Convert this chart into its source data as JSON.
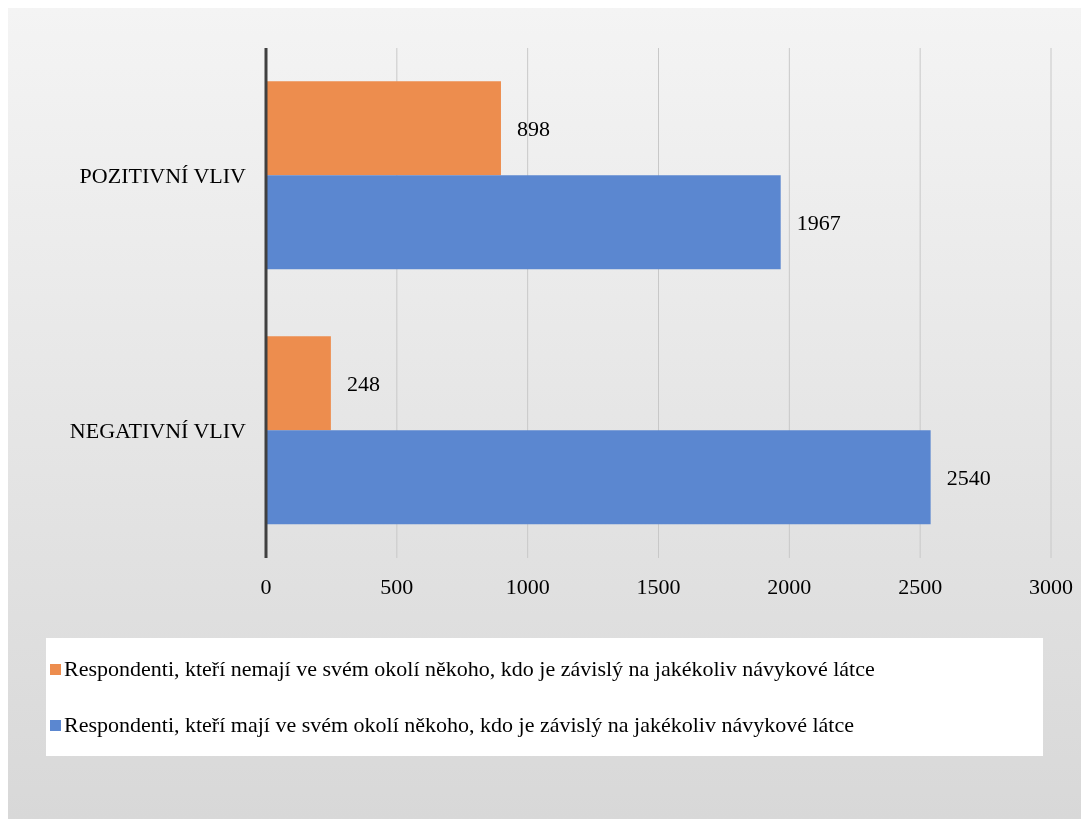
{
  "chart_data": {
    "type": "bar",
    "orientation": "horizontal",
    "categories": [
      "POZITIVNÍ VLIV",
      "NEGATIVNÍ VLIV"
    ],
    "series": [
      {
        "name": "Respondenti, kteří nemají ve svém okolí někoho, kdo je závislý na jakékoliv návykové látce",
        "color": "#ed8d4e",
        "values": [
          898,
          248
        ]
      },
      {
        "name": "Respondenti, kteří mají ve svém okolí někoho, kdo je závislý na jakékoliv návykové látce",
        "color": "#5b87d0",
        "values": [
          1967,
          2540
        ]
      }
    ],
    "xlim": [
      0,
      3000
    ],
    "xticks": [
      0,
      500,
      1000,
      1500,
      2000,
      2500,
      3000
    ],
    "grid": "x",
    "legend": "bottom",
    "data_labels": true
  }
}
